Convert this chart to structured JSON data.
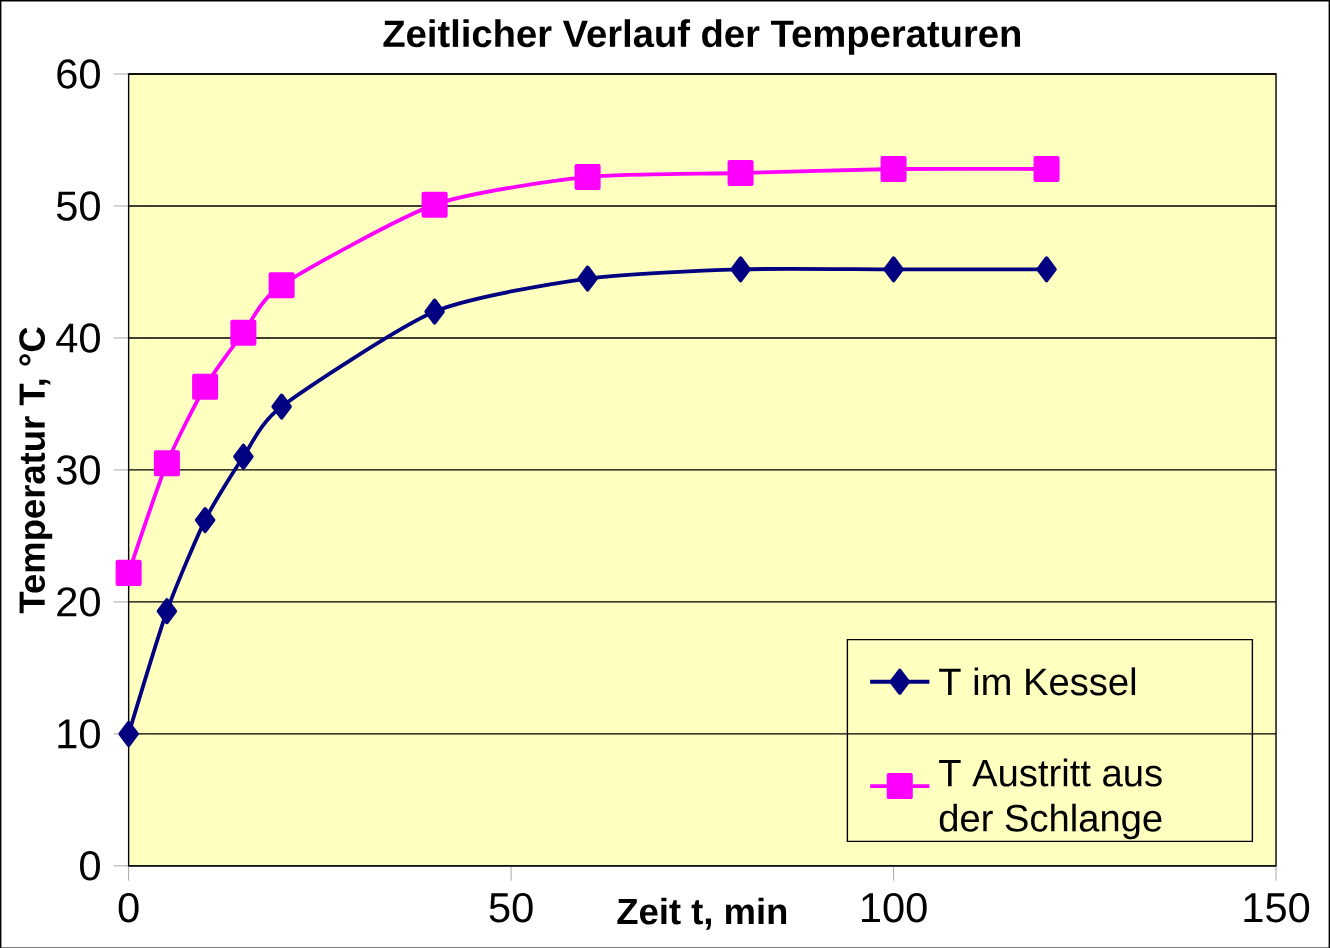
{
  "chart_data": {
    "type": "line",
    "title": "Zeitlicher Verlauf der Temperaturen",
    "xlabel": "Zeit t, min",
    "ylabel": "Temperatur T, °C",
    "x": [
      0,
      5,
      10,
      15,
      20,
      40,
      60,
      80,
      100,
      120
    ],
    "series": [
      {
        "name": "T im Kessel",
        "color": "#000080",
        "marker": "diamond",
        "values": [
          10,
          19.3,
          26.2,
          31,
          34.8,
          42,
          44.5,
          45.2,
          45.2,
          45.2
        ]
      },
      {
        "name": "T Austritt aus der Schlange",
        "color": "#ff00ff",
        "marker": "square",
        "values": [
          22.2,
          30.5,
          36.3,
          40.4,
          44,
          50.1,
          52.2,
          52.5,
          52.8,
          52.8
        ]
      }
    ],
    "xlim": [
      0,
      150
    ],
    "xticks": [
      0,
      50,
      100,
      150
    ],
    "ylim": [
      0,
      60
    ],
    "yticks": [
      0,
      10,
      20,
      30,
      40,
      50,
      60
    ],
    "grid": "y",
    "legend": "bottom right",
    "line_style": "solid"
  }
}
